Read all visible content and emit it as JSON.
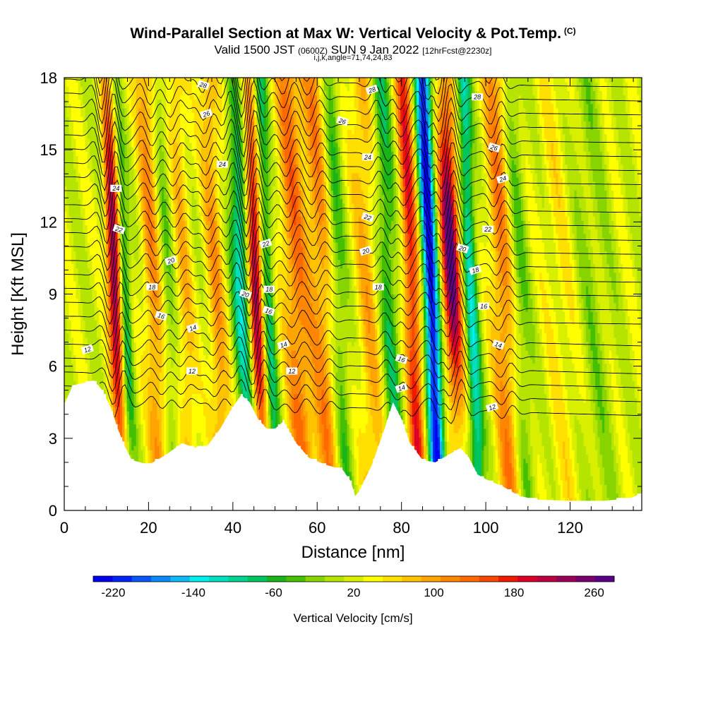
{
  "header": {
    "title": "Wind-Parallel Section at Max W: Vertical Velocity & Pot.Temp.",
    "copyright": "(C)",
    "valid_prefix": "Valid 1500 JST",
    "valid_utc": "(0600Z)",
    "valid_date": "SUN 9 Jan 2022",
    "forecast": "[12hrFcst@2230z]",
    "params": "i,j,k,angle=71,74,24,83"
  },
  "chart_data": {
    "type": "contour",
    "xlabel": "Distance [nm]",
    "ylabel": "Height [Kft MSL]",
    "xlim": [
      0,
      137
    ],
    "ylim": [
      0,
      18
    ],
    "xticks": [
      0,
      20,
      40,
      60,
      80,
      100,
      120
    ],
    "yticks": [
      0,
      3,
      6,
      9,
      12,
      15,
      18
    ],
    "colorbar": {
      "label": "Vertical Velocity [cm/s]",
      "ticks": [
        -220,
        -140,
        -60,
        20,
        100,
        180,
        260
      ],
      "levels": [
        -240,
        -220,
        -200,
        -180,
        -160,
        -140,
        -120,
        -100,
        -80,
        -60,
        -40,
        -20,
        0,
        20,
        40,
        60,
        80,
        100,
        120,
        140,
        160,
        180,
        200,
        220,
        240,
        260,
        280
      ],
      "colors": [
        "#0000ee",
        "#0022f5",
        "#0a55f5",
        "#0a88f5",
        "#10b8f5",
        "#00f0f0",
        "#00e0c0",
        "#00d290",
        "#00c460",
        "#18b418",
        "#44c000",
        "#88d400",
        "#b4e400",
        "#d8f000",
        "#ffff00",
        "#ffe000",
        "#ffc200",
        "#ffa400",
        "#ff8600",
        "#ff6a00",
        "#f84800",
        "#f01a00",
        "#dc0028",
        "#bc0040",
        "#9a0056",
        "#7a006c",
        "#5a0084"
      ]
    },
    "theta_labels": [
      {
        "x": 5.5,
        "y": 6.7,
        "label": "12"
      },
      {
        "x": 12.3,
        "y": 13.4,
        "label": "24"
      },
      {
        "x": 13.0,
        "y": 11.7,
        "label": "22"
      },
      {
        "x": 25.3,
        "y": 10.4,
        "label": "20"
      },
      {
        "x": 20.8,
        "y": 9.3,
        "label": "18"
      },
      {
        "x": 23.0,
        "y": 8.1,
        "label": "16"
      },
      {
        "x": 30.5,
        "y": 7.6,
        "label": "14"
      },
      {
        "x": 30.3,
        "y": 5.8,
        "label": "12"
      },
      {
        "x": 33.0,
        "y": 17.7,
        "label": "28"
      },
      {
        "x": 33.7,
        "y": 16.5,
        "label": "26"
      },
      {
        "x": 37.5,
        "y": 14.4,
        "label": "24"
      },
      {
        "x": 43.0,
        "y": 9.0,
        "label": "20"
      },
      {
        "x": 47.8,
        "y": 11.1,
        "label": "22"
      },
      {
        "x": 48.6,
        "y": 9.2,
        "label": "18"
      },
      {
        "x": 48.5,
        "y": 8.3,
        "label": "16"
      },
      {
        "x": 52.0,
        "y": 6.9,
        "label": "14"
      },
      {
        "x": 54.0,
        "y": 5.8,
        "label": "12"
      },
      {
        "x": 66.0,
        "y": 16.2,
        "label": "26"
      },
      {
        "x": 73.0,
        "y": 17.5,
        "label": "28"
      },
      {
        "x": 72.0,
        "y": 14.7,
        "label": "24"
      },
      {
        "x": 72.0,
        "y": 12.2,
        "label": "22"
      },
      {
        "x": 71.5,
        "y": 10.8,
        "label": "20"
      },
      {
        "x": 74.5,
        "y": 9.3,
        "label": "18"
      },
      {
        "x": 80.0,
        "y": 6.3,
        "label": "16"
      },
      {
        "x": 80.0,
        "y": 5.1,
        "label": "14"
      },
      {
        "x": 98.0,
        "y": 17.2,
        "label": "28"
      },
      {
        "x": 102.0,
        "y": 15.1,
        "label": "26"
      },
      {
        "x": 104.0,
        "y": 13.8,
        "label": "24"
      },
      {
        "x": 100.5,
        "y": 11.7,
        "label": "22"
      },
      {
        "x": 94.5,
        "y": 10.9,
        "label": "20"
      },
      {
        "x": 97.5,
        "y": 10.0,
        "label": "18"
      },
      {
        "x": 99.5,
        "y": 8.5,
        "label": "16"
      },
      {
        "x": 103.0,
        "y": 6.9,
        "label": "14"
      },
      {
        "x": 101.5,
        "y": 4.3,
        "label": "12"
      }
    ]
  }
}
